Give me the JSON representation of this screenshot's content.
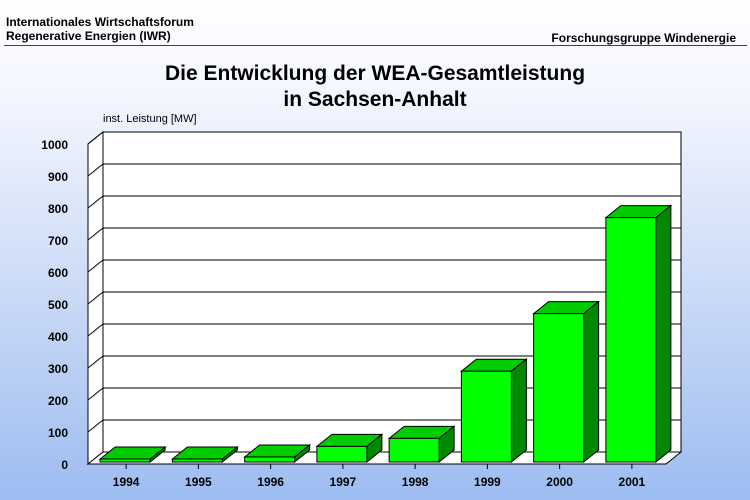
{
  "header": {
    "org_line1": "Internationales Wirtschaftsforum",
    "org_line2": "Regenerative Energien (IWR)",
    "right": "Forschungsgruppe Windenergie"
  },
  "colors": {
    "bar_front": "#00ff00",
    "bar_top": "#00cc00",
    "bar_side": "#008800",
    "header_rule": "#e00000",
    "background_top": "#ffffff",
    "background_bottom": "#9dbcf1"
  },
  "chart_data": {
    "type": "bar",
    "title_line1": "Die Entwicklung der WEA-Gesamtleistung",
    "title_line2": "in Sachsen-Anhalt",
    "ylabel": "inst. Leistung [MW]",
    "xlabel": "",
    "categories": [
      "1994",
      "1995",
      "1996",
      "1997",
      "1998",
      "1999",
      "2000",
      "2001"
    ],
    "values": [
      3,
      12,
      22,
      55,
      80,
      290,
      470,
      770
    ],
    "yticks": [
      0,
      100,
      200,
      300,
      400,
      500,
      600,
      700,
      800,
      900,
      1000
    ],
    "ylim": [
      0,
      1000
    ],
    "grid": true,
    "style": "3d"
  }
}
